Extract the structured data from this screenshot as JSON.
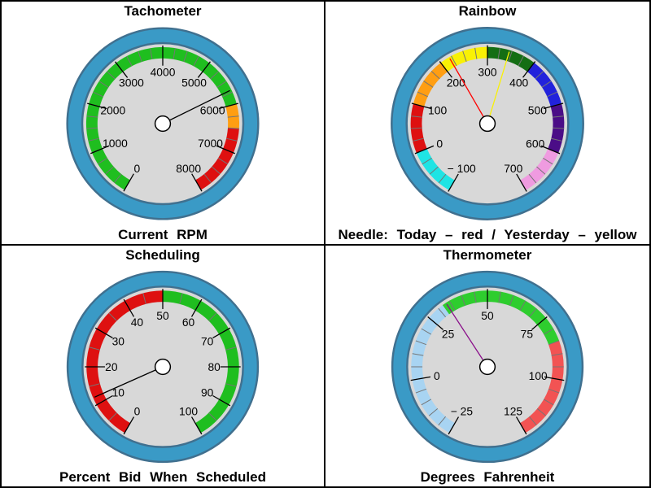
{
  "palette": {
    "ring_fill": "#3A9AC6",
    "ring_border": "#40708F",
    "face_fill": "#D8D8D8",
    "hub_fill": "#FFFFFF",
    "hub_border": "#000000",
    "tick_major": "#000000",
    "tick_minor": "#757575",
    "label_color": "#000000"
  },
  "chart_data": [
    {
      "type": "gauge",
      "title": "Tachometer",
      "caption": "Current RPM",
      "min": 0,
      "max": 8000,
      "major_step": 1000,
      "minor_step": 250,
      "start_angle_deg": 240,
      "end_angle_deg": -60,
      "tick_labels": [
        "0",
        "1000",
        "2000",
        "3000",
        "4000",
        "5000",
        "6000",
        "7000",
        "8000"
      ],
      "ranges": [
        {
          "name": "normal-green",
          "from": 0,
          "to": 6000,
          "color": "#1FBE1F"
        },
        {
          "name": "warning-orange",
          "from": 6000,
          "to": 6500,
          "color": "#FF9E12"
        },
        {
          "name": "danger-red",
          "from": 6500,
          "to": 8000,
          "color": "#DE1010"
        }
      ],
      "needles": [
        {
          "name": "current-rpm",
          "value": 5700,
          "color": "#000000"
        }
      ]
    },
    {
      "type": "gauge",
      "title": "Rainbow",
      "caption": "Needle: Today – red / Yesterday – yellow",
      "min": -100,
      "max": 700,
      "major_step": 100,
      "minor_step": 25,
      "start_angle_deg": 240,
      "end_angle_deg": -60,
      "tick_labels": [
        "− 100",
        "0",
        "100",
        "200",
        "300",
        "400",
        "500",
        "600",
        "700"
      ],
      "ranges": [
        {
          "name": "cyan",
          "from": -100,
          "to": 0,
          "color": "#1FE4E4"
        },
        {
          "name": "red",
          "from": 0,
          "to": 100,
          "color": "#DE1010"
        },
        {
          "name": "orange",
          "from": 100,
          "to": 200,
          "color": "#FF9E12"
        },
        {
          "name": "yellow",
          "from": 200,
          "to": 300,
          "color": "#F9F105"
        },
        {
          "name": "dark-green",
          "from": 300,
          "to": 400,
          "color": "#146E14"
        },
        {
          "name": "blue",
          "from": 400,
          "to": 500,
          "color": "#2222DC"
        },
        {
          "name": "indigo",
          "from": 500,
          "to": 600,
          "color": "#4B0D87"
        },
        {
          "name": "orchid",
          "from": 600,
          "to": 700,
          "color": "#EF9BE0"
        }
      ],
      "needles": [
        {
          "name": "today",
          "value": 220,
          "color": "#FF0000"
        },
        {
          "name": "yesterday",
          "value": 345,
          "color": "#F9F105"
        }
      ]
    },
    {
      "type": "gauge",
      "title": "Scheduling",
      "caption": "Percent Bid When Scheduled",
      "min": 0,
      "max": 100,
      "major_step": 10,
      "minor_step": 5,
      "start_angle_deg": 240,
      "end_angle_deg": -60,
      "tick_labels": [
        "0",
        "10",
        "20",
        "30",
        "40",
        "50",
        "60",
        "70",
        "80",
        "90",
        "100"
      ],
      "ranges": [
        {
          "name": "low-red",
          "from": 0,
          "to": 50,
          "color": "#DE1010"
        },
        {
          "name": "good-green",
          "from": 50,
          "to": 100,
          "color": "#1FBE1F"
        }
      ],
      "needles": [
        {
          "name": "percent-bid",
          "value": 12,
          "color": "#000000"
        }
      ]
    },
    {
      "type": "gauge",
      "title": "Thermometer",
      "caption": "Degrees Fahrenheit",
      "min": -25,
      "max": 125,
      "major_step": 25,
      "minor_step": 5,
      "start_angle_deg": 240,
      "end_angle_deg": -60,
      "tick_labels": [
        "− 25",
        "0",
        "25",
        "50",
        "75",
        "100",
        "125"
      ],
      "ranges": [
        {
          "name": "cold-light-blue",
          "from": -25,
          "to": 32,
          "color": "#A8D4F2"
        },
        {
          "name": "mild-green",
          "from": 32,
          "to": 85,
          "color": "#2ECD2E"
        },
        {
          "name": "hot-red",
          "from": 85,
          "to": 125,
          "color": "#F25353"
        }
      ],
      "needles": [
        {
          "name": "temperature",
          "value": 33.5,
          "color": "#8A0F8A"
        }
      ]
    }
  ]
}
